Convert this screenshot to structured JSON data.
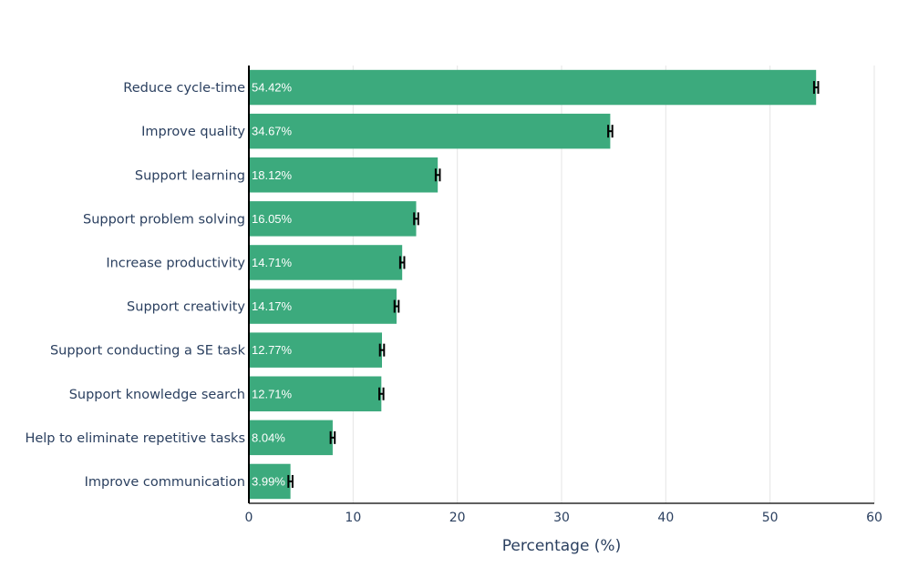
{
  "chart_data": {
    "type": "bar",
    "orientation": "horizontal",
    "categories": [
      "Reduce cycle-time",
      "Improve quality",
      "Support learning",
      "Support problem solving",
      "Increase productivity",
      "Support creativity",
      "Support conducting a SE task",
      "Support knowledge search",
      "Help to eliminate repetitive tasks",
      "Improve communication"
    ],
    "values": [
      54.42,
      34.67,
      18.12,
      16.05,
      14.71,
      14.17,
      12.77,
      12.71,
      8.04,
      3.99
    ],
    "data_labels": [
      "54.42%",
      "34.67%",
      "18.12%",
      "16.05%",
      "14.71%",
      "14.17%",
      "12.77%",
      "12.71%",
      "8.04%",
      "3.99%"
    ],
    "error": [
      0.2,
      0.2,
      0.2,
      0.2,
      0.2,
      0.2,
      0.2,
      0.2,
      0.2,
      0.2
    ],
    "xlabel": "Percentage (%)",
    "xlim": [
      0,
      60
    ],
    "xticks": [
      0,
      10,
      20,
      30,
      40,
      50,
      60
    ],
    "grid": true,
    "bar_color": "#3caa7d",
    "error_color": "#000000"
  }
}
